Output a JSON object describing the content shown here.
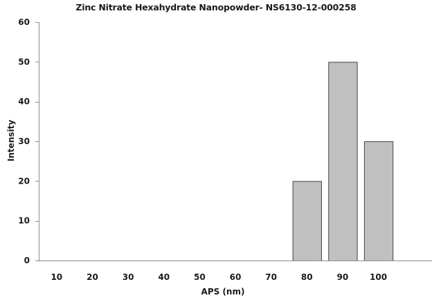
{
  "chart_data": {
    "type": "bar",
    "title": "Zinc Nitrate Hexahydrate Nanopowder- NS6130-12-000258",
    "xlabel": "APS (nm)",
    "ylabel": "Intensity",
    "categories": [
      "10",
      "20",
      "30",
      "40",
      "50",
      "60",
      "70",
      "80",
      "90",
      "100"
    ],
    "values": [
      0,
      0,
      0,
      0,
      0,
      0,
      0,
      20,
      50,
      30
    ],
    "ylim": [
      0,
      60
    ],
    "yticks": [
      0,
      10,
      20,
      30,
      40,
      50,
      60
    ],
    "grid": false,
    "legend": null,
    "bar_color": "#c0c0c0",
    "bar_edge_color": "#404040",
    "axis_color": "#8c8c8c"
  }
}
